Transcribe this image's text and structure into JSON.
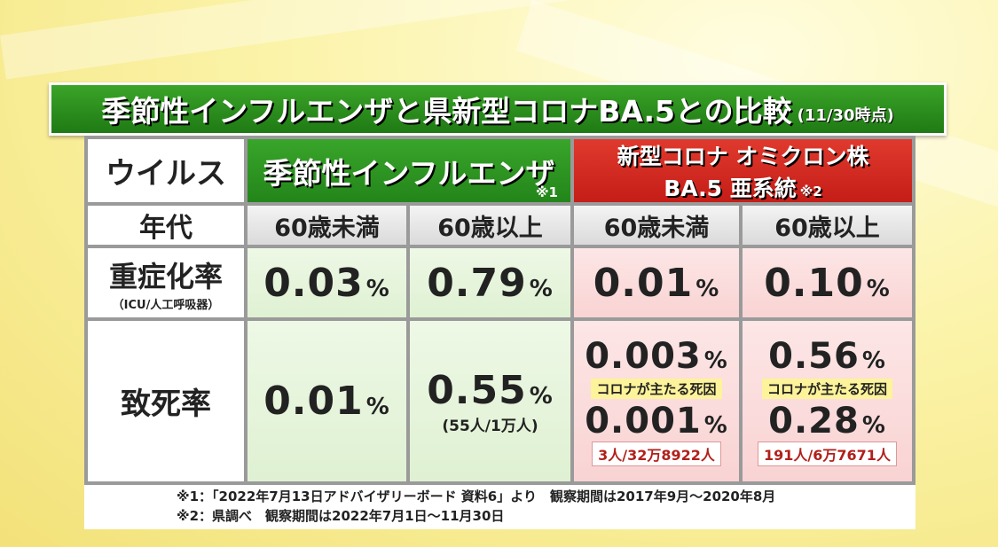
{
  "title": {
    "main": "季節性インフルエンザと県新型コロナBA.5との比較",
    "date": "(11/30時点)"
  },
  "table": {
    "header": {
      "label": "ウイルス",
      "flu": {
        "name": "季節性インフルエンザ",
        "note": "※1"
      },
      "corona": {
        "name": "新型コロナ オミクロン株",
        "lineage": "BA.5 亜系統",
        "note": "※2"
      }
    },
    "age_row": {
      "label": "年代",
      "cells": [
        "60歳未満",
        "60歳以上",
        "60歳未満",
        "60歳以上"
      ]
    },
    "severity_row": {
      "label": "重症化率",
      "sublabel": "（ICU/人工呼吸器）",
      "cells": [
        {
          "value": "0.03",
          "unit": "%"
        },
        {
          "value": "0.79",
          "unit": "%"
        },
        {
          "value": "0.01",
          "unit": "%"
        },
        {
          "value": "0.10",
          "unit": "%"
        }
      ]
    },
    "mortality_row": {
      "label": "致死率",
      "cells": [
        {
          "value": "0.01",
          "unit": "%"
        },
        {
          "value": "0.55",
          "unit": "%",
          "note": "(55人/1万人)"
        },
        {
          "value": "0.003",
          "unit": "%",
          "tag": "コロナが主たる死因",
          "value2": "0.001",
          "unit2": "%",
          "note": "3人/32万8922人"
        },
        {
          "value": "0.56",
          "unit": "%",
          "tag": "コロナが主たる死因",
          "value2": "0.28",
          "unit2": "%",
          "note": "191人/6万7671人"
        }
      ]
    }
  },
  "footnotes": [
    "※1：「2022年7月13日アドバイザリーボード 資料6」より　観察期間は2017年9月～2020年8月",
    "※2：県調べ　観察期間は2022年7月1日～11月30日"
  ]
}
